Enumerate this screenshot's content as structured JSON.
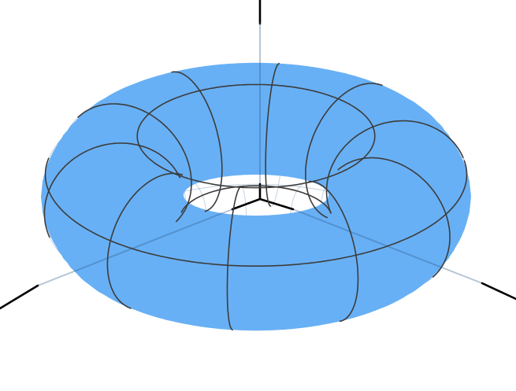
{
  "scene": {
    "object": "torus",
    "surface_color": "#63adf5",
    "surface_opacity": 0.97,
    "hole_color": "#ffffff",
    "front_gridline_color": "#3c3c3c",
    "back_gridline_color": "#3d6e9c",
    "axis_color": "#000000",
    "axes": [
      "x",
      "y",
      "z"
    ],
    "meridian_count": 10,
    "parallel_count": 4,
    "background": "#ffffff"
  }
}
